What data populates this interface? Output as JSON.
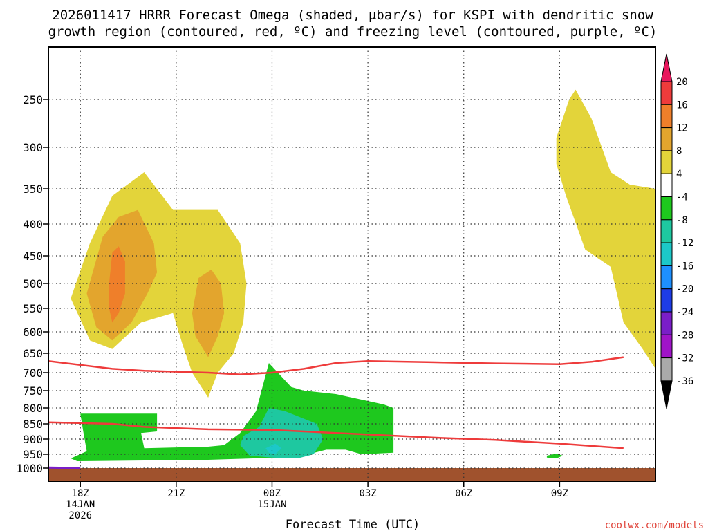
{
  "chart_data": {
    "type": "heatmap",
    "title_line1": "2026011417 HRRR Forecast Omega (shaded, μbar/s) for KSPI with dendritic snow",
    "title_line2": "growth region (contoured, red, ºC) and freezing level (contoured, purple, ºC)",
    "xlabel": "Forecast Time (UTC)",
    "credit": "coolwx.com/models",
    "x_range_hours": [
      -1,
      18
    ],
    "x_ticks": [
      {
        "hour": 0,
        "line1": "18Z",
        "line2": "14JAN",
        "line3": "2026"
      },
      {
        "hour": 3,
        "line1": "21Z"
      },
      {
        "hour": 6,
        "line1": "00Z",
        "line2": "15JAN"
      },
      {
        "hour": 9,
        "line1": "03Z"
      },
      {
        "hour": 12,
        "line1": "06Z"
      },
      {
        "hour": 15,
        "line1": "09Z"
      }
    ],
    "y_ticks": [
      "250",
      "300",
      "350",
      "400",
      "450",
      "500",
      "550",
      "600",
      "650",
      "700",
      "750",
      "800",
      "850",
      "900",
      "950",
      "1000"
    ],
    "y_range_mb": [
      200,
      1030
    ],
    "ground_level_mb": 1000,
    "colorbar": {
      "labels": [
        "20",
        "16",
        "12",
        "8",
        "4",
        "-4",
        "-8",
        "-12",
        "-16",
        "-20",
        "-24",
        "-28",
        "-32",
        "-36"
      ],
      "colors": [
        "#e8175d",
        "#ee3b3b",
        "#ef7f2a",
        "#e3a52d",
        "#e3d43a",
        "#ffffff",
        "#1ec81e",
        "#1ec8a0",
        "#1cc8c8",
        "#1e90ff",
        "#1e3ce6",
        "#7a1ec8",
        "#a014c8",
        "#aaaaaa",
        "#000000"
      ]
    },
    "colors": {
      "ascent_4_8": "#e3d43a",
      "ascent_8_12": "#e3a52d",
      "ascent_12_16": "#ef7f2a",
      "descent_4_8": "#1ec81e",
      "descent_8_12": "#1ec8a0",
      "descent_12_16": "#1cc8c8",
      "dgz_contour": "#ee3b3b",
      "freezing_level": "#7a1ec8",
      "ground": "#a0522d"
    },
    "dgz_upper_mb": [
      [
        -1,
        670
      ],
      [
        1,
        690
      ],
      [
        2,
        695
      ],
      [
        4,
        700
      ],
      [
        5,
        705
      ],
      [
        6,
        700
      ],
      [
        7,
        690
      ],
      [
        8,
        675
      ],
      [
        9,
        670
      ],
      [
        11,
        673
      ],
      [
        13,
        676
      ],
      [
        15,
        678
      ],
      [
        16,
        672
      ],
      [
        17,
        660
      ]
    ],
    "dgz_lower_mb": [
      [
        -1,
        845
      ],
      [
        1,
        850
      ],
      [
        2,
        860
      ],
      [
        4,
        868
      ],
      [
        6,
        870
      ],
      [
        8,
        880
      ],
      [
        9,
        885
      ],
      [
        11,
        895
      ],
      [
        13,
        903
      ],
      [
        15,
        915
      ],
      [
        17,
        930
      ]
    ],
    "freezing_level_mb": [
      [
        -1,
        998
      ],
      [
        0,
        1000
      ]
    ],
    "omega_regions": [
      {
        "band": "ascent_4_8",
        "points": [
          [
            -0.3,
            530
          ],
          [
            0.3,
            430
          ],
          [
            1,
            360
          ],
          [
            2,
            330
          ],
          [
            2.9,
            380
          ],
          [
            4.3,
            380
          ],
          [
            5,
            430
          ],
          [
            5.2,
            500
          ],
          [
            5.1,
            580
          ],
          [
            4.8,
            650
          ],
          [
            4.3,
            700
          ],
          [
            4,
            770
          ],
          [
            3.5,
            700
          ],
          [
            3.2,
            630
          ],
          [
            2.9,
            560
          ],
          [
            1.9,
            580
          ],
          [
            1,
            640
          ],
          [
            0.3,
            620
          ]
        ]
      },
      {
        "band": "ascent_8_12",
        "points": [
          [
            0.2,
            520
          ],
          [
            0.7,
            420
          ],
          [
            1.2,
            390
          ],
          [
            1.8,
            380
          ],
          [
            2.3,
            430
          ],
          [
            2.4,
            480
          ],
          [
            2.1,
            520
          ],
          [
            1.6,
            580
          ],
          [
            1,
            620
          ],
          [
            0.5,
            590
          ]
        ]
      },
      {
        "band": "ascent_12_16",
        "points": [
          [
            0.9,
            500
          ],
          [
            1,
            445
          ],
          [
            1.2,
            435
          ],
          [
            1.4,
            460
          ],
          [
            1.4,
            520
          ],
          [
            1.2,
            560
          ],
          [
            1,
            580
          ],
          [
            0.9,
            550
          ]
        ]
      },
      {
        "band": "ascent_8_12",
        "points": [
          [
            3.5,
            560
          ],
          [
            3.7,
            490
          ],
          [
            4.1,
            475
          ],
          [
            4.4,
            500
          ],
          [
            4.5,
            560
          ],
          [
            4.3,
            610
          ],
          [
            4,
            660
          ],
          [
            3.6,
            610
          ]
        ]
      },
      {
        "band": "ascent_4_8",
        "points": [
          [
            14.9,
            290
          ],
          [
            15.3,
            250
          ],
          [
            15.5,
            240
          ],
          [
            16,
            270
          ],
          [
            16.6,
            330
          ],
          [
            17.2,
            345
          ],
          [
            18,
            350
          ],
          [
            18,
            690
          ],
          [
            17.6,
            640
          ],
          [
            17,
            580
          ],
          [
            16.6,
            470
          ],
          [
            15.8,
            440
          ],
          [
            15.2,
            360
          ],
          [
            14.9,
            320
          ]
        ]
      },
      {
        "band": "descent_4_8",
        "points": [
          [
            0,
            818
          ],
          [
            2.4,
            818
          ],
          [
            2.4,
            875
          ],
          [
            1.9,
            880
          ],
          [
            2,
            930
          ],
          [
            4,
            925
          ],
          [
            4.5,
            920
          ],
          [
            5,
            880
          ],
          [
            5.5,
            810
          ],
          [
            5.7,
            740
          ],
          [
            5.9,
            675
          ],
          [
            6.6,
            740
          ],
          [
            7,
            750
          ],
          [
            8,
            760
          ],
          [
            8.5,
            770
          ],
          [
            9.5,
            790
          ],
          [
            9.8,
            800
          ],
          [
            9.8,
            945
          ],
          [
            8.8,
            950
          ],
          [
            8.3,
            935
          ],
          [
            7.7,
            935
          ],
          [
            6.8,
            960
          ],
          [
            4,
            970
          ],
          [
            -0.1,
            975
          ],
          [
            -0.3,
            965
          ],
          [
            0.2,
            940
          ],
          [
            0.1,
            880
          ]
        ]
      },
      {
        "band": "descent_8_12",
        "points": [
          [
            5.1,
            890
          ],
          [
            5.6,
            860
          ],
          [
            5.9,
            800
          ],
          [
            6.4,
            810
          ],
          [
            6.9,
            830
          ],
          [
            7.4,
            850
          ],
          [
            7.6,
            900
          ],
          [
            7.3,
            950
          ],
          [
            6.8,
            965
          ],
          [
            6,
            962
          ],
          [
            5.3,
            955
          ],
          [
            5,
            920
          ]
        ]
      },
      {
        "band": "descent_12_16",
        "points": [
          [
            5.8,
            930
          ],
          [
            6.1,
            915
          ],
          [
            6.3,
            930
          ],
          [
            6.1,
            950
          ],
          [
            5.9,
            945
          ]
        ]
      },
      {
        "band": "descent_4_8",
        "points": [
          [
            14.6,
            955
          ],
          [
            14.9,
            948
          ],
          [
            15.1,
            955
          ],
          [
            14.9,
            965
          ],
          [
            14.6,
            962
          ]
        ]
      }
    ]
  }
}
